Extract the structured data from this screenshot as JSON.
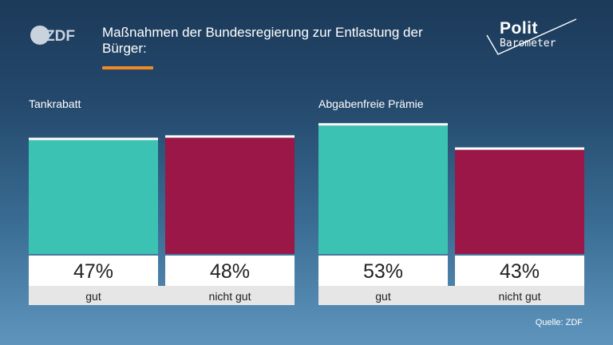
{
  "header": {
    "brand": "ZDF",
    "title": "Maßnahmen der Bundesregierung zur Entlastung der Bürger:",
    "polit_word": "Polit",
    "barometer_word": "Barometer",
    "accent_color": "#f08a24"
  },
  "colors": {
    "gut": "#3cc2b3",
    "nicht_gut": "#9a1748",
    "label_bg": "#ffffff",
    "category_bg": "#e6e6e6",
    "text_dark": "#222222"
  },
  "chart_data": [
    {
      "type": "bar",
      "title": "Tankrabatt",
      "categories": [
        "gut",
        "nicht gut"
      ],
      "values": [
        47,
        48
      ],
      "value_labels": [
        "47%",
        "48%"
      ],
      "ylim": [
        0,
        60
      ]
    },
    {
      "type": "bar",
      "title": "Abgabenfreie Prämie",
      "categories": [
        "gut",
        "nicht gut"
      ],
      "values": [
        53,
        43
      ],
      "value_labels": [
        "53%",
        "43%"
      ],
      "ylim": [
        0,
        60
      ]
    }
  ],
  "footer": {
    "source": "Quelle: ZDF"
  }
}
